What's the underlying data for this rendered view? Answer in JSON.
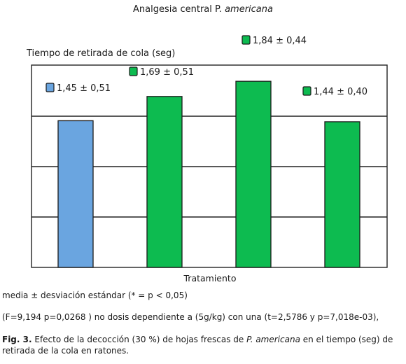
{
  "chart_data": {
    "type": "bar",
    "title_prefix": "Analgesia central P. ",
    "title_italic": "americana",
    "ylabel": "Tiempo de retirada de cola (seg)",
    "xlabel": "Tratamiento",
    "ylim": [
      0,
      2.0
    ],
    "grid": true,
    "values": [
      1.45,
      1.69,
      1.84,
      1.44
    ],
    "labels": [
      "1,45 ± 0,51",
      "1,69 ± 0,51",
      "1,84 ± 0,44",
      "1,44 ± 0,40"
    ],
    "colors": [
      "#6aa5e0",
      "#0dbb50",
      "#0dbb50",
      "#0dbb50"
    ]
  },
  "notes": {
    "line1": "media ± desviación estándar (* = p < 0,05)",
    "line2": "(F=9,194 p=0,0268 ) no dosis dependiente a (5g/kg) con una (t=2,5786 y p=7,018e-03),"
  },
  "caption": {
    "fig_label": "Fig. 3.",
    "text_before": " Efecto de la decocción (30 %) de hojas frescas de ",
    "text_italic": "P. americana",
    "text_after": " en el tiempo (seg) de retirada de la cola en ratones."
  }
}
